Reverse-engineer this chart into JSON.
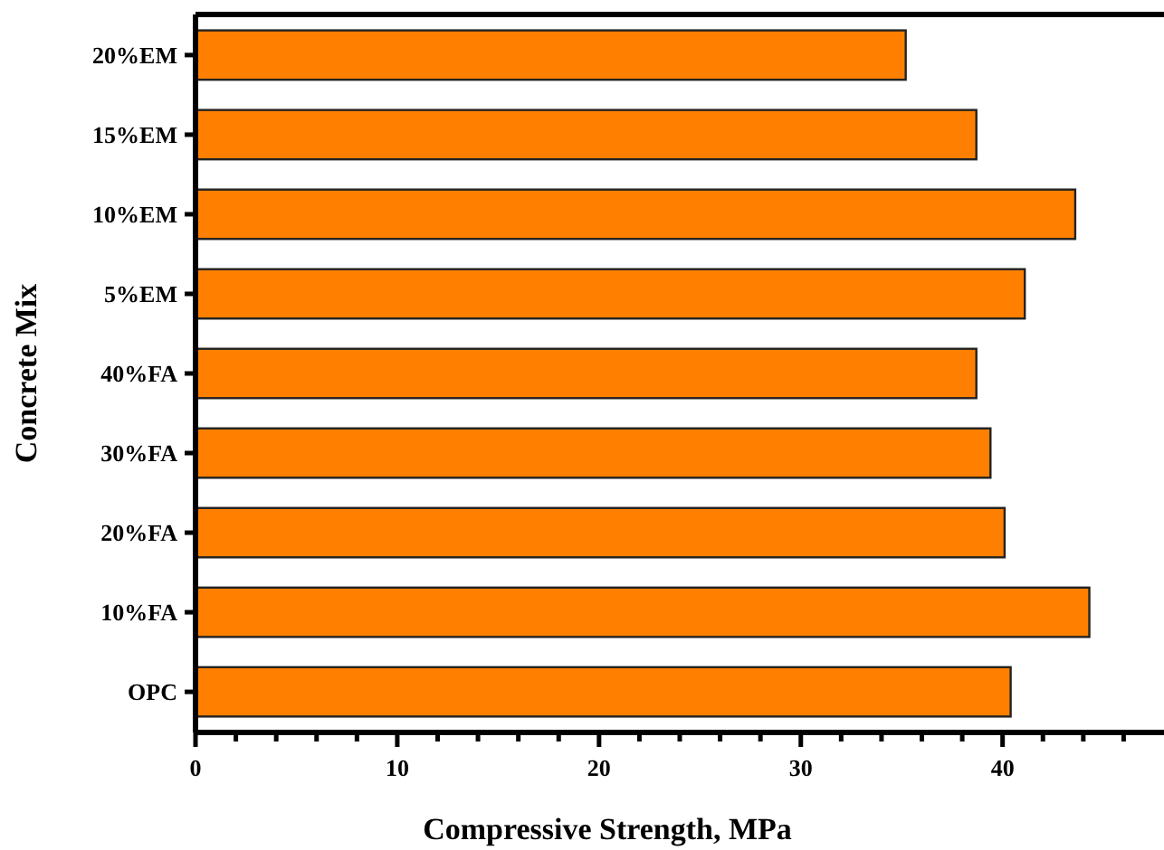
{
  "chart_data": {
    "type": "bar",
    "orientation": "horizontal",
    "xlabel": "Compressive Strength, MPa",
    "ylabel": "Concrete Mix",
    "categories": [
      "20%EM",
      "15%EM",
      "10%EM",
      "5%EM",
      "40%FA",
      "30%FA",
      "20%FA",
      "10%FA",
      "OPC"
    ],
    "values": [
      35.2,
      38.7,
      43.6,
      41.1,
      38.7,
      39.4,
      40.1,
      44.3,
      40.4
    ],
    "color": "#ff8000",
    "xlim": [
      0,
      48
    ],
    "xticks": [
      0,
      {
        "value": 2,
        "label": null
      },
      {
        "value": 4,
        "label": null
      },
      {
        "value": 6,
        "label": null
      },
      {
        "value": 8,
        "label": null
      },
      10,
      {
        "value": 12,
        "label": null
      },
      {
        "value": 14,
        "label": null
      },
      {
        "value": 16,
        "label": null
      },
      {
        "value": 18,
        "label": null
      },
      20,
      {
        "value": 22,
        "label": null
      },
      {
        "value": 24,
        "label": null
      },
      {
        "value": 26,
        "label": null
      },
      {
        "value": 28,
        "label": null
      },
      30,
      {
        "value": 32,
        "label": null
      },
      {
        "value": 34,
        "label": null
      },
      {
        "value": 36,
        "label": null
      },
      {
        "value": 38,
        "label": null
      },
      40,
      {
        "value": 42,
        "label": null
      },
      {
        "value": 44,
        "label": null
      },
      {
        "value": 46,
        "label": null
      }
    ],
    "grid": false
  }
}
